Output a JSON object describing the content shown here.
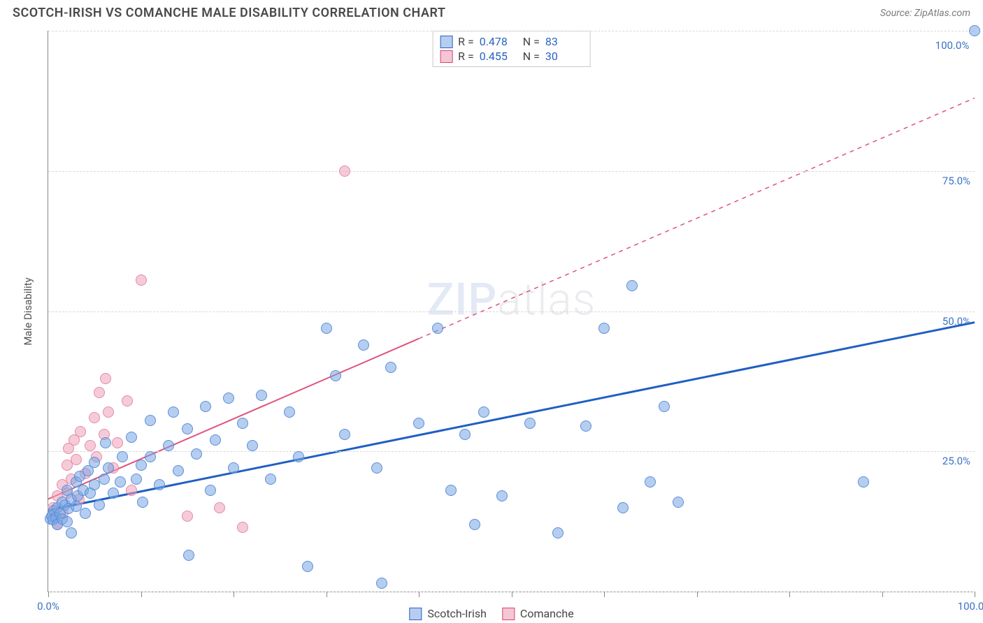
{
  "title": "SCOTCH-IRISH VS COMANCHE MALE DISABILITY CORRELATION CHART",
  "source_label": "Source: ZipAtlas.com",
  "ylabel": "Male Disability",
  "watermark_a": "ZIP",
  "watermark_b": "atlas",
  "xlim": [
    0,
    100
  ],
  "ylim": [
    0,
    100
  ],
  "x_tick_pcts": [
    0.0,
    10.0,
    20.0,
    30.0,
    40.0,
    50.0,
    60.0,
    70.0,
    80.0,
    90.0,
    100.0
  ],
  "x_labels": [
    {
      "x": 0.0,
      "text": "0.0%"
    },
    {
      "x": 100.0,
      "text": "100.0%"
    }
  ],
  "y_gridlines": [
    {
      "y": 0.0,
      "label": null
    },
    {
      "y": 25.0,
      "label": "25.0%"
    },
    {
      "y": 50.0,
      "label": "50.0%"
    },
    {
      "y": 75.0,
      "label": "75.0%"
    },
    {
      "y": 100.0,
      "label": null
    }
  ],
  "stats_legend": [
    {
      "swatch_fill": "#b6cdf1",
      "swatch_border": "#2b63c0",
      "r_label": "R =",
      "r": "0.478",
      "n_label": "N =",
      "n": "83"
    },
    {
      "swatch_fill": "#f6c6d4",
      "swatch_border": "#d5476e",
      "r_label": "R =",
      "r": "0.455",
      "n_label": "N =",
      "n": "30"
    }
  ],
  "bottom_legend": [
    {
      "swatch_fill": "#b6cdf1",
      "swatch_border": "#2b63c0",
      "label": "Scotch-Irish"
    },
    {
      "swatch_fill": "#f6c6d4",
      "swatch_border": "#d5476e",
      "label": "Comanche"
    }
  ],
  "series": {
    "scotch_irish": {
      "point_fill": "rgba(120,165,228,0.55)",
      "point_stroke": "#5c8ed8",
      "point_radius": 8,
      "trend_color": "#1f5fc4",
      "trend_width": 3,
      "trend_dash": null,
      "trend": {
        "x1": 0,
        "y1": 14.5,
        "x2": 100,
        "y2": 48.0
      },
      "points": [
        [
          0.2,
          13.0
        ],
        [
          0.4,
          13.5
        ],
        [
          0.5,
          12.8
        ],
        [
          0.6,
          14.5
        ],
        [
          0.8,
          13.2
        ],
        [
          1.0,
          15.0
        ],
        [
          1.0,
          12.0
        ],
        [
          1.3,
          14.0
        ],
        [
          1.5,
          16.0
        ],
        [
          1.5,
          13.0
        ],
        [
          1.8,
          15.5
        ],
        [
          2.0,
          18.0
        ],
        [
          2.0,
          12.5
        ],
        [
          2.2,
          14.8
        ],
        [
          2.5,
          16.5
        ],
        [
          2.5,
          10.5
        ],
        [
          3.0,
          19.5
        ],
        [
          3.0,
          15.2
        ],
        [
          3.2,
          17.0
        ],
        [
          3.4,
          20.5
        ],
        [
          3.8,
          18.0
        ],
        [
          4.0,
          14.0
        ],
        [
          4.3,
          21.5
        ],
        [
          4.5,
          17.5
        ],
        [
          5.0,
          23.0
        ],
        [
          5.0,
          19.0
        ],
        [
          5.5,
          15.5
        ],
        [
          6.0,
          20.0
        ],
        [
          6.2,
          26.5
        ],
        [
          6.5,
          22.0
        ],
        [
          7.0,
          17.5
        ],
        [
          7.8,
          19.5
        ],
        [
          8.0,
          24.0
        ],
        [
          9.0,
          27.5
        ],
        [
          9.5,
          20.0
        ],
        [
          10.0,
          22.5
        ],
        [
          10.2,
          16.0
        ],
        [
          11.0,
          30.5
        ],
        [
          11.0,
          24.0
        ],
        [
          12.0,
          19.0
        ],
        [
          13.0,
          26.0
        ],
        [
          13.5,
          32.0
        ],
        [
          14.0,
          21.5
        ],
        [
          15.0,
          29.0
        ],
        [
          15.2,
          6.5
        ],
        [
          16.0,
          24.5
        ],
        [
          17.0,
          33.0
        ],
        [
          17.5,
          18.0
        ],
        [
          18.0,
          27.0
        ],
        [
          19.5,
          34.5
        ],
        [
          20.0,
          22.0
        ],
        [
          21.0,
          30.0
        ],
        [
          22.0,
          26.0
        ],
        [
          23.0,
          35.0
        ],
        [
          24.0,
          20.0
        ],
        [
          26.0,
          32.0
        ],
        [
          27.0,
          24.0
        ],
        [
          28.0,
          4.5
        ],
        [
          30.0,
          47.0
        ],
        [
          31.0,
          38.5
        ],
        [
          32.0,
          28.0
        ],
        [
          34.0,
          44.0
        ],
        [
          35.5,
          22.0
        ],
        [
          36.0,
          1.5
        ],
        [
          37.0,
          40.0
        ],
        [
          40.0,
          30.0
        ],
        [
          42.0,
          47.0
        ],
        [
          43.5,
          18.0
        ],
        [
          45.0,
          28.0
        ],
        [
          46.0,
          12.0
        ],
        [
          47.0,
          32.0
        ],
        [
          49.0,
          17.0
        ],
        [
          52.0,
          30.0
        ],
        [
          55.0,
          10.5
        ],
        [
          58.0,
          29.5
        ],
        [
          60.0,
          47.0
        ],
        [
          62.0,
          15.0
        ],
        [
          63.0,
          54.5
        ],
        [
          65.0,
          19.5
        ],
        [
          66.5,
          33.0
        ],
        [
          68.0,
          16.0
        ],
        [
          88.0,
          19.5
        ],
        [
          100.0,
          100.0
        ]
      ],
      "annotated_point": {
        "x": 100.0,
        "y": 100.0,
        "label": "100.0%"
      }
    },
    "comanche": {
      "point_fill": "rgba(239,160,184,0.55)",
      "point_stroke": "#e58aa8",
      "point_radius": 8,
      "trend_color": "#e0537a",
      "trend_width": 2,
      "trend_dash": "solid_then_dash",
      "trend": {
        "x1": 0,
        "y1": 16.5,
        "x2": 100,
        "y2": 88.0
      },
      "trend_dash_break_x": 40.0,
      "points": [
        [
          0.5,
          15.0
        ],
        [
          1.0,
          17.0
        ],
        [
          1.0,
          12.0
        ],
        [
          1.5,
          19.0
        ],
        [
          1.6,
          14.0
        ],
        [
          2.0,
          22.5
        ],
        [
          2.0,
          17.5
        ],
        [
          2.2,
          25.5
        ],
        [
          2.5,
          20.0
        ],
        [
          2.8,
          27.0
        ],
        [
          3.0,
          23.5
        ],
        [
          3.3,
          16.5
        ],
        [
          3.5,
          28.5
        ],
        [
          4.0,
          21.0
        ],
        [
          4.5,
          26.0
        ],
        [
          5.0,
          31.0
        ],
        [
          5.2,
          24.0
        ],
        [
          5.5,
          35.5
        ],
        [
          6.0,
          28.0
        ],
        [
          6.2,
          38.0
        ],
        [
          6.5,
          32.0
        ],
        [
          7.0,
          22.0
        ],
        [
          7.5,
          26.5
        ],
        [
          8.5,
          34.0
        ],
        [
          9.0,
          18.0
        ],
        [
          10.0,
          55.5
        ],
        [
          15.0,
          13.5
        ],
        [
          18.5,
          15.0
        ],
        [
          21.0,
          11.5
        ],
        [
          32.0,
          75.0
        ]
      ]
    }
  },
  "colors": {
    "background": "#ffffff",
    "axis": "#888888",
    "grid": "#d8d8d8",
    "title_text": "#4a4a4a",
    "source_text": "#7a7a7a",
    "tick_pct_text": "#3b72c7",
    "stat_num_text": "#2b63c0"
  }
}
